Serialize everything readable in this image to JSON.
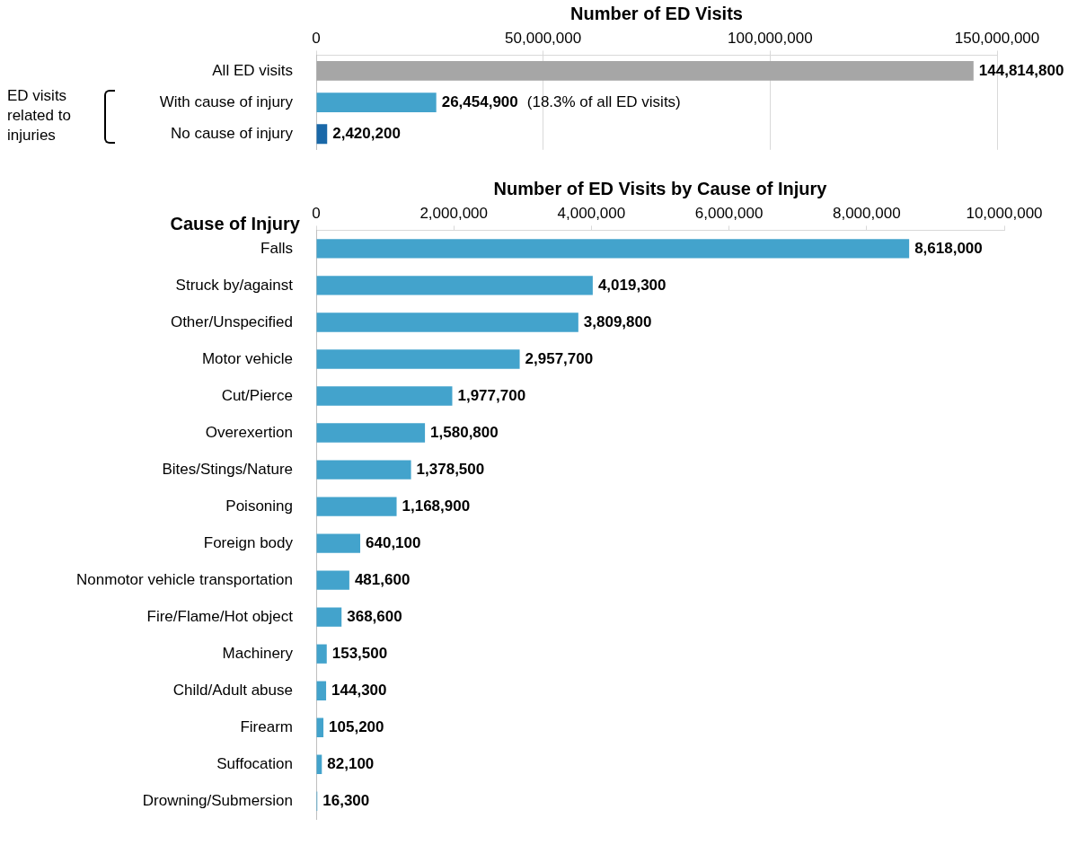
{
  "chart_data": [
    {
      "type": "bar",
      "orientation": "horizontal",
      "xlabel": "Number of ED Visits",
      "categories": [
        "All ED visits",
        "With cause of injury",
        "No cause of injury"
      ],
      "values": [
        144814800,
        26454900,
        2420200
      ],
      "colors": [
        "#a6a6a6",
        "#43a3cc",
        "#1a68a8"
      ],
      "xlim": [
        0,
        150000000
      ],
      "xticks": [
        {
          "value": 0,
          "label": "0"
        },
        {
          "value": 50000000,
          "label": "50,000,000"
        },
        {
          "value": 100000000,
          "label": "100,000,000"
        },
        {
          "value": 150000000,
          "label": "150,000,000"
        }
      ],
      "grid": "x",
      "legend": false,
      "value_labels": [
        "144,814,800",
        "26,454,900",
        "2,420,200"
      ],
      "annotations": [
        "(18.3% of all ED visits)",
        "ED visits related to injuries"
      ]
    },
    {
      "type": "bar",
      "orientation": "horizontal",
      "xlabel": "Number of ED Visits by Cause of Injury",
      "ylabel": "Cause of Injury",
      "categories": [
        "Falls",
        "Struck by/against",
        "Other/Unspecified",
        "Motor vehicle",
        "Cut/Pierce",
        "Overexertion",
        "Bites/Stings/Nature",
        "Poisoning",
        "Foreign body",
        "Nonmotor vehicle transportation",
        "Fire/Flame/Hot object",
        "Machinery",
        "Child/Adult abuse",
        "Firearm",
        "Suffocation",
        "Drowning/Submersion"
      ],
      "values": [
        8618000,
        4019300,
        3809800,
        2957700,
        1977700,
        1580800,
        1378500,
        1168900,
        640100,
        481600,
        368600,
        153500,
        144300,
        105200,
        82100,
        16300
      ],
      "color": "#43a3cc",
      "xlim": [
        0,
        10000000
      ],
      "xticks": [
        {
          "value": 0,
          "label": "0"
        },
        {
          "value": 2000000,
          "label": "2,000,000"
        },
        {
          "value": 4000000,
          "label": "4,000,000"
        },
        {
          "value": 6000000,
          "label": "6,000,000"
        },
        {
          "value": 8000000,
          "label": "8,000,000"
        },
        {
          "value": 10000000,
          "label": "10,000,000"
        }
      ],
      "legend": false,
      "value_labels": [
        "8,618,000",
        "4,019,300",
        "3,809,800",
        "2,957,700",
        "1,977,700",
        "1,580,800",
        "1,378,500",
        "1,168,900",
        "640,100",
        "481,600",
        "368,600",
        "153,500",
        "144,300",
        "105,200",
        "82,100",
        "16,300"
      ]
    }
  ]
}
